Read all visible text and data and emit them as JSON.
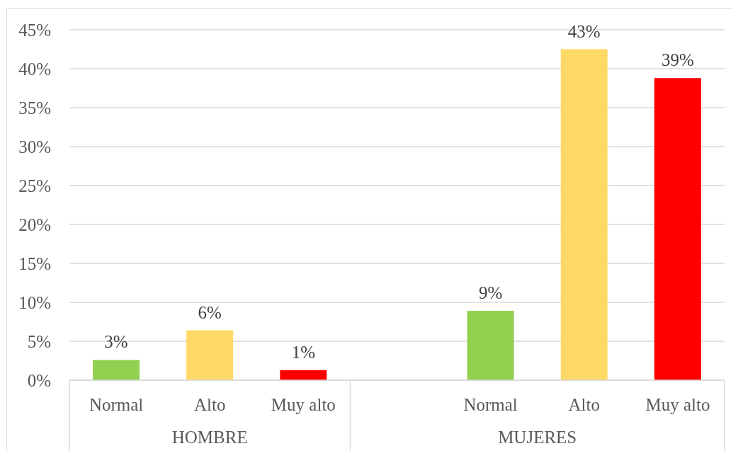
{
  "chart_data": {
    "type": "bar",
    "categories": [
      "Normal",
      "Alto",
      "Muy alto",
      null,
      "Normal",
      "Alto",
      "Muy alto"
    ],
    "values": [
      2.6,
      6.4,
      1.3,
      null,
      8.9,
      42.5,
      38.8
    ],
    "colors": [
      "#92d050",
      "#ffd966",
      "#ff0000",
      null,
      "#92d050",
      "#ffd966",
      "#ff0000"
    ],
    "value_labels": [
      "3%",
      "6%",
      "1%",
      null,
      "9%",
      "43%",
      "39%"
    ],
    "ylim": [
      0,
      45
    ],
    "yticks": [
      {
        "value": 0,
        "label": "0%"
      },
      {
        "value": 5,
        "label": "5%"
      },
      {
        "value": 10,
        "label": "10%"
      },
      {
        "value": 15,
        "label": "15%"
      },
      {
        "value": 20,
        "label": "20%"
      },
      {
        "value": 25,
        "label": "25%"
      },
      {
        "value": 30,
        "label": "30%"
      },
      {
        "value": 35,
        "label": "35%"
      },
      {
        "value": 40,
        "label": "40%"
      },
      {
        "value": 45,
        "label": "45%"
      }
    ],
    "grid": "y",
    "annotations": [
      "HOMBRE",
      "MUJERES"
    ]
  }
}
